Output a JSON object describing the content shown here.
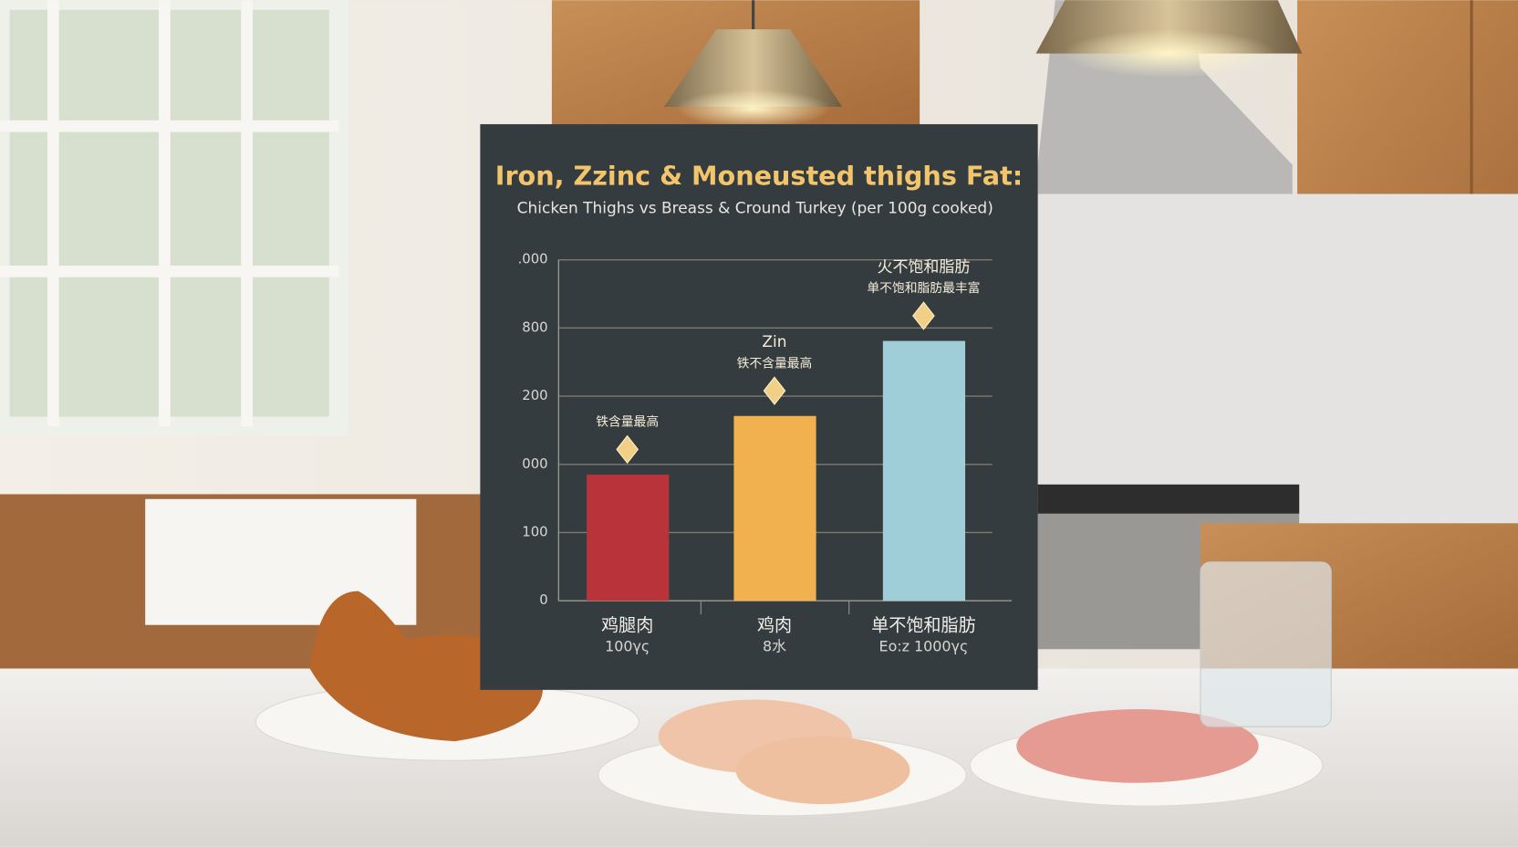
{
  "chart_data": {
    "type": "bar",
    "title": "Iron, Zzinc & Moneusted thighs Fat:",
    "subtitle": "Chicken Thighs vs Breass & Cround Turkey (per 100g cooked)",
    "categories": [
      "鸡腿肉",
      "鸡肉",
      "单不饱和脂肪"
    ],
    "sublabels": [
      "100γς",
      "8水",
      "Eo:z 1000γς"
    ],
    "values": [
      185,
      271,
      381
    ],
    "colors": [
      "#b8343a",
      "#f2b14f",
      "#9fcdd8"
    ],
    "annotations": [
      [
        "铁含量最高"
      ],
      [
        "Zin",
        "铁不含量最高"
      ],
      [
        "火不饱和脂肪",
        "单不饱和脂肪最丰富"
      ]
    ],
    "ylim": [
      0,
      500
    ],
    "yticks": [
      0,
      100,
      {
        "value": 200,
        "label": "000"
      },
      {
        "value": 300,
        "label": "200"
      },
      {
        "value": 400,
        "label": "800"
      },
      {
        "value": 500,
        "label": ".000"
      }
    ],
    "grid": true
  }
}
